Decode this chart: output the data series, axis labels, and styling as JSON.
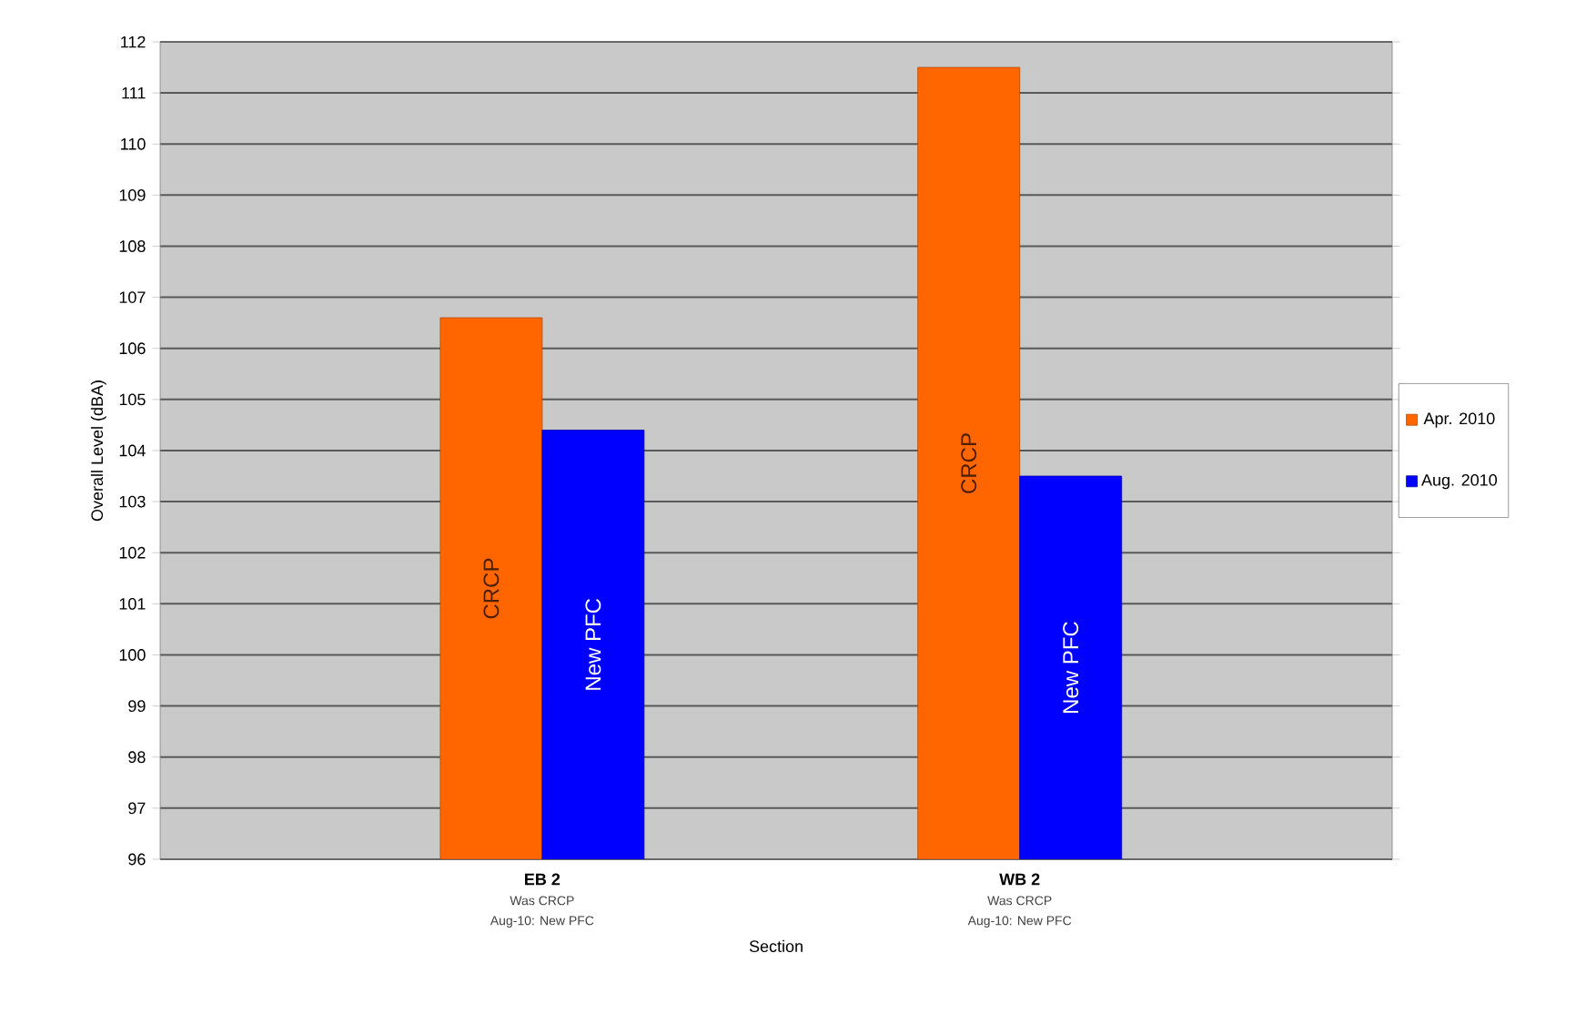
{
  "chart_data": {
    "type": "bar",
    "xlabel": "Section",
    "ylabel": "Overall Level (dBA)",
    "categories": [
      "EB 2",
      "WB 2"
    ],
    "series": [
      {
        "name": "Apr. 2010",
        "color": "#ff6600",
        "values": [
          106.6,
          111.5
        ],
        "value_labels": [
          "CRCP",
          "CRCP"
        ]
      },
      {
        "name": "Aug. 2010",
        "color": "#0000ff",
        "values": [
          104.4,
          103.5
        ],
        "value_labels": [
          "New PFC",
          "New PFC"
        ]
      }
    ],
    "annotations": [
      "Was CRCP",
      "Aug-10: New PFC",
      "Was CRCP",
      "Aug-10: New PFC"
    ],
    "ylim": [
      96,
      112
    ],
    "yticks": [
      96,
      97,
      98,
      99,
      100,
      101,
      102,
      103,
      104,
      105,
      106,
      107,
      108,
      109,
      110,
      111,
      112
    ],
    "grid": "y",
    "legend": "right"
  }
}
